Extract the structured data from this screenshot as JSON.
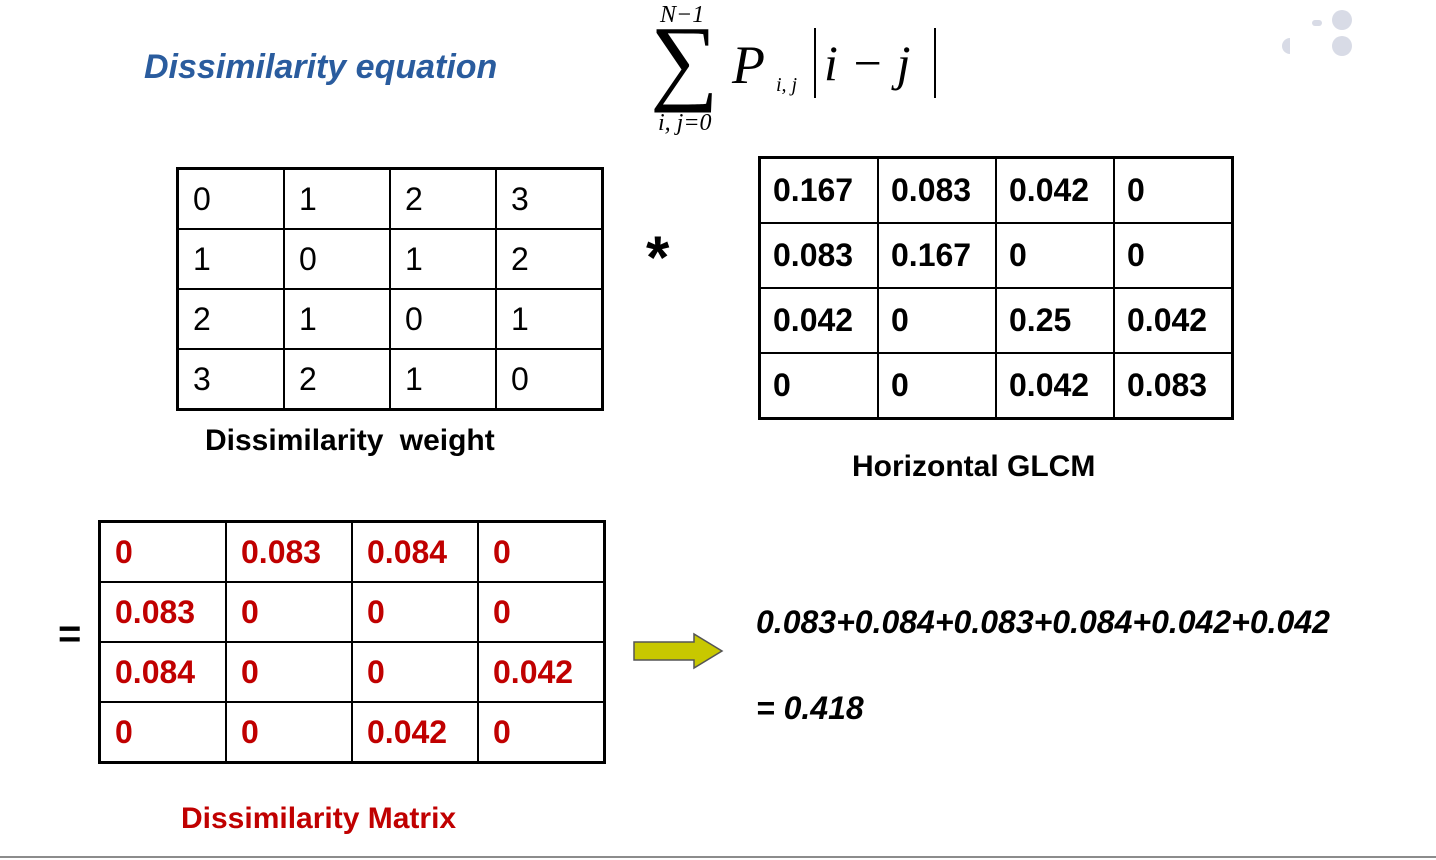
{
  "title": "Dissimilarity equation",
  "equation": {
    "upper_limit": "N−1",
    "operator": "∑",
    "lower_limit": "i, j=0",
    "term": "P",
    "term_subscript": "i, j",
    "abs_expression": "i − j"
  },
  "weight_matrix": {
    "caption": "Dissimilarity  weight",
    "rows": [
      [
        "0",
        "1",
        "2",
        "3"
      ],
      [
        "1",
        "0",
        "1",
        "2"
      ],
      [
        "2",
        "1",
        "0",
        "1"
      ],
      [
        "3",
        "2",
        "1",
        "0"
      ]
    ]
  },
  "multiply_symbol": "*",
  "glcm_matrix": {
    "caption": "Horizontal GLCM",
    "rows": [
      [
        "0.167",
        "0.083",
        "0.042",
        "0"
      ],
      [
        "0.083",
        "0.167",
        "0",
        "0"
      ],
      [
        "0.042",
        "0",
        "0.25",
        "0.042"
      ],
      [
        "0",
        "0",
        "0.042",
        "0.083"
      ]
    ]
  },
  "equals_symbol": "=",
  "dissimilarity_matrix": {
    "caption": "Dissimilarity Matrix",
    "color": "#c00000",
    "rows": [
      [
        "0",
        "0.083",
        "0.084",
        "0"
      ],
      [
        "0.083",
        "0",
        "0",
        "0"
      ],
      [
        "0.084",
        "0",
        "0",
        "0.042"
      ],
      [
        "0",
        "0",
        "0.042",
        "0"
      ]
    ]
  },
  "arrow_icon": "right-arrow-icon",
  "arrow_color": "#c8c800",
  "sum_expression": "0.083+0.084+0.083+0.084+0.042+0.042",
  "sum_result": "= 0.418",
  "title_color": "#2a5c9e"
}
